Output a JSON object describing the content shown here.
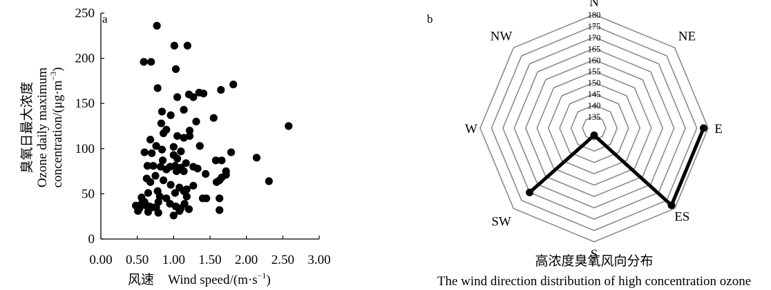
{
  "chart_data": [
    {
      "type": "scatter",
      "panel_label": "a",
      "xlabel_cn": "风速",
      "xlabel": "Wind speed/(m·s",
      "xlabel_sup": "−1",
      "xlabel_close": ")",
      "ylabel_lines": [
        "臭氧日最大浓度",
        "Ozone daily maximum",
        "concentration/(μg·m"
      ],
      "ylabel_sup": "−3",
      "ylabel_close": ")",
      "xlim": [
        0,
        3
      ],
      "ylim": [
        0,
        250
      ],
      "x_ticks": [
        0,
        0.5,
        1,
        1.5,
        2,
        2.5,
        3
      ],
      "x_tick_labels": [
        "0.00",
        "0.50",
        "1.00",
        "1.50",
        "2.00",
        "2.50",
        "3.00"
      ],
      "y_ticks": [
        0,
        50,
        100,
        150,
        200,
        250
      ],
      "y_tick_labels": [
        "0",
        "50",
        "100",
        "150",
        "200",
        "250"
      ],
      "grid": false,
      "points": [
        [
          0.77,
          236
        ],
        [
          0.59,
          196
        ],
        [
          0.69,
          196
        ],
        [
          1.01,
          214
        ],
        [
          1.19,
          214
        ],
        [
          1.03,
          188
        ],
        [
          1.82,
          171
        ],
        [
          0.78,
          167
        ],
        [
          1.35,
          162
        ],
        [
          1.65,
          165
        ],
        [
          1.05,
          157
        ],
        [
          1.21,
          160
        ],
        [
          1.27,
          157
        ],
        [
          1.14,
          143
        ],
        [
          0.84,
          141
        ],
        [
          0.96,
          137
        ],
        [
          1.41,
          161
        ],
        [
          1.55,
          134
        ],
        [
          2.58,
          125
        ],
        [
          0.83,
          128
        ],
        [
          0.9,
          121
        ],
        [
          1.22,
          120
        ],
        [
          1.31,
          130
        ],
        [
          0.86,
          117
        ],
        [
          1.05,
          114
        ],
        [
          1.14,
          112
        ],
        [
          1.22,
          114
        ],
        [
          1.36,
          103
        ],
        [
          0.68,
          110
        ],
        [
          0.76,
          103
        ],
        [
          0.84,
          99
        ],
        [
          1.0,
          102
        ],
        [
          1.1,
          97
        ],
        [
          0.6,
          96
        ],
        [
          0.7,
          95
        ],
        [
          1.0,
          93
        ],
        [
          1.05,
          89
        ],
        [
          0.85,
          87
        ],
        [
          1.17,
          84
        ],
        [
          1.27,
          80
        ],
        [
          1.79,
          96
        ],
        [
          2.14,
          90
        ],
        [
          1.58,
          87
        ],
        [
          1.66,
          87
        ],
        [
          1.72,
          75
        ],
        [
          1.72,
          71
        ],
        [
          0.64,
          81
        ],
        [
          0.72,
          81
        ],
        [
          0.82,
          80
        ],
        [
          0.95,
          80
        ],
        [
          1.02,
          81
        ],
        [
          1.1,
          79
        ],
        [
          0.9,
          77
        ],
        [
          1.04,
          75
        ],
        [
          1.14,
          75
        ],
        [
          0.75,
          70
        ],
        [
          0.63,
          67
        ],
        [
          1.33,
          78
        ],
        [
          1.44,
          72
        ],
        [
          1.66,
          68
        ],
        [
          0.86,
          65
        ],
        [
          0.68,
          63
        ],
        [
          0.96,
          60
        ],
        [
          1.08,
          57
        ],
        [
          1.18,
          55
        ],
        [
          1.27,
          59
        ],
        [
          0.78,
          53
        ],
        [
          0.65,
          51
        ],
        [
          1.02,
          51
        ],
        [
          1.14,
          53
        ],
        [
          1.63,
          65
        ],
        [
          1.59,
          63
        ],
        [
          2.31,
          64
        ],
        [
          0.56,
          46
        ],
        [
          0.6,
          41
        ],
        [
          0.81,
          47
        ],
        [
          0.9,
          45
        ],
        [
          1.18,
          47
        ],
        [
          1.4,
          45
        ],
        [
          1.45,
          45
        ],
        [
          1.63,
          45
        ],
        [
          0.48,
          37
        ],
        [
          0.53,
          34
        ],
        [
          0.56,
          39
        ],
        [
          0.62,
          37
        ],
        [
          0.67,
          36
        ],
        [
          0.71,
          35
        ],
        [
          0.76,
          35
        ],
        [
          0.79,
          41
        ],
        [
          0.95,
          39
        ],
        [
          1.03,
          36
        ],
        [
          1.1,
          34
        ],
        [
          1.15,
          39
        ],
        [
          1.21,
          33
        ],
        [
          0.51,
          31
        ],
        [
          0.65,
          30
        ],
        [
          0.79,
          29
        ],
        [
          1.0,
          26
        ],
        [
          1.08,
          31
        ],
        [
          1.63,
          32
        ]
      ]
    },
    {
      "type": "radar",
      "panel_label": "b",
      "directions": [
        "N",
        "NE",
        "E",
        "ES",
        "S",
        "SW",
        "W",
        "NW"
      ],
      "rings": [
        135,
        140,
        145,
        150,
        155,
        160,
        165,
        170,
        175,
        180
      ],
      "r_range": [
        130,
        180
      ],
      "values": [
        null,
        null,
        178,
        178,
        133,
        170,
        null,
        null
      ],
      "title_cn": "高浓度臭氧风向分布",
      "title": "The wind direction distribution of high concentration ozone"
    }
  ]
}
